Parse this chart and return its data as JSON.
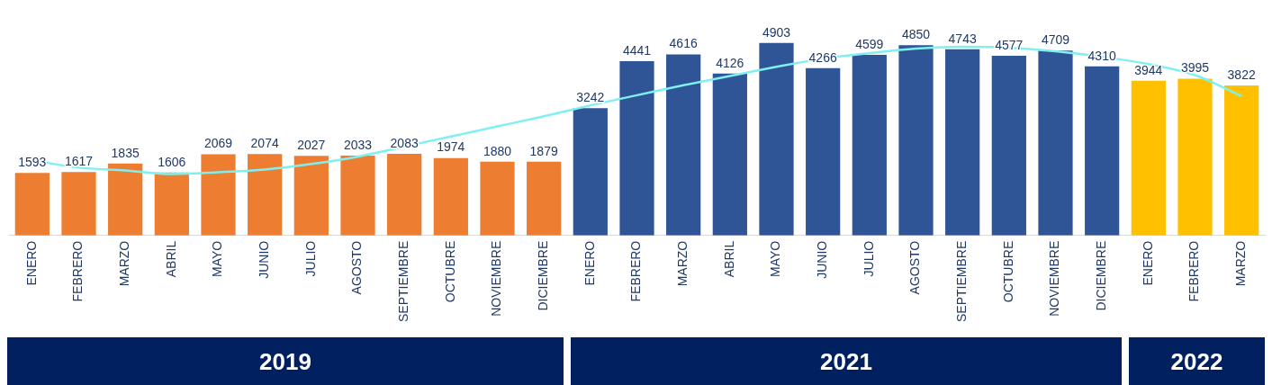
{
  "chart_data": {
    "type": "bar",
    "categories": [
      "ENERO",
      "FEBRERO",
      "MARZO",
      "ABRIL",
      "MAYO",
      "JUNIO",
      "JULIO",
      "AGOSTO",
      "SEPTIEMBRE",
      "OCTUBRE",
      "NOVIEMBRE",
      "DICIEMBRE",
      "ENERO",
      "FEBRERO",
      "MARZO",
      "ABRIL",
      "MAYO",
      "JUNIO",
      "JULIO",
      "AGOSTO",
      "SEPTIEMBRE",
      "OCTUBRE",
      "NOVIEMBRE",
      "DICIEMBRE",
      "ENERO",
      "FEBRERO",
      "MARZO"
    ],
    "series": [
      {
        "colors": [
          "#ed7d31",
          "#ed7d31",
          "#ed7d31",
          "#ed7d31",
          "#ed7d31",
          "#ed7d31",
          "#ed7d31",
          "#ed7d31",
          "#ed7d31",
          "#ed7d31",
          "#ed7d31",
          "#ed7d31",
          "#2f5597",
          "#2f5597",
          "#2f5597",
          "#2f5597",
          "#2f5597",
          "#2f5597",
          "#2f5597",
          "#2f5597",
          "#2f5597",
          "#2f5597",
          "#2f5597",
          "#2f5597",
          "#ffc000",
          "#ffc000",
          "#ffc000"
        ],
        "values": [
          1593,
          1617,
          1835,
          1606,
          2069,
          2074,
          2027,
          2033,
          2083,
          1974,
          1880,
          1879,
          3242,
          4441,
          4616,
          4126,
          4903,
          4266,
          4599,
          4850,
          4743,
          4577,
          4709,
          4310,
          3944,
          3995,
          3822
        ],
        "value_labels": [
          "1593",
          "1617",
          "1835",
          "1606",
          "2069",
          "2074",
          "2027",
          "2033",
          "2083",
          "1974",
          "1880",
          "1879",
          "3242",
          "4441",
          "4616",
          "4126",
          "4903",
          "4266",
          "4599",
          "4850",
          "4743",
          "4577",
          "4709",
          "4310",
          "3944",
          "3995",
          "3822"
        ]
      },
      {
        "type": "line",
        "color": "#7ff0f0",
        "marker": "none",
        "values": [
          1915,
          1728,
          1658,
          1564,
          1611,
          1681,
          1821,
          2008,
          2265,
          2522,
          2779,
          3036,
          3316,
          3573,
          3829,
          4063,
          4296,
          4507,
          4647,
          4763,
          4810,
          4787,
          4693,
          4553,
          4366,
          4086,
          3549
        ]
      }
    ],
    "annotations": [
      "2019",
      "2021",
      "2022"
    ],
    "legend": false
  }
}
